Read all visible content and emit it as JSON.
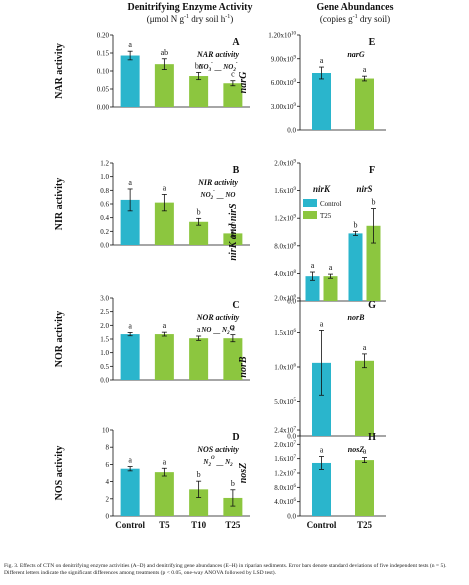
{
  "headers": {
    "left_title": "Denitrifying Enzyme Activity",
    "left_unit_pre": "(μmol N g",
    "left_unit_sup1": "-1",
    "left_unit_mid": " dry soil h",
    "left_unit_sup2": "-1",
    "left_unit_post": ")",
    "right_title": "Gene Abundances",
    "right_unit_pre": "(copies g",
    "right_unit_sup": "-1",
    "right_unit_post": " dry soil)"
  },
  "caption": "Fig. 3. Effects of CTN on denitrifying enzyme activities (A–D) and denitrifying gene abundances (E–H) in riparian sediments. Error bars denote standard deviations of five independent tests (n = 5). Different letters indicate the significant differences among treatments (p < 0.05, one-way ANOVA followed by LSD test).",
  "colors": {
    "control": "#2ab5cc",
    "treatment": "#8cc63f"
  },
  "chart_data": [
    {
      "type": "bar",
      "panel": "A",
      "ylabel": "NAR activity",
      "annotation": "NAR activity",
      "reaction": [
        "NO",
        "3",
        "-",
        "—",
        "NO",
        "2",
        "-"
      ],
      "categories": [
        "Control",
        "T5",
        "T10",
        "T25"
      ],
      "values": [
        0.143,
        0.119,
        0.086,
        0.066
      ],
      "errors": [
        0.012,
        0.015,
        0.01,
        0.007
      ],
      "letters": [
        "a",
        "ab",
        "bc",
        "c"
      ],
      "ylim": [
        0,
        0.2
      ],
      "yticks": [
        "0.00",
        "0.05",
        "0.10",
        "0.15",
        "0.20"
      ],
      "show_xlabels": false
    },
    {
      "type": "bar",
      "panel": "B",
      "ylabel": "NIR activity",
      "annotation": "NIR activity",
      "reaction": [
        "NO",
        "2",
        "-",
        "—",
        "NO",
        "",
        ""
      ],
      "categories": [
        "Control",
        "T5",
        "T10",
        "T25"
      ],
      "values": [
        0.66,
        0.62,
        0.34,
        0.17
      ],
      "errors": [
        0.16,
        0.12,
        0.05,
        0.05
      ],
      "letters": [
        "a",
        "a",
        "b",
        "c"
      ],
      "ylim": [
        0,
        1.2
      ],
      "yticks": [
        "0.0",
        "0.2",
        "0.4",
        "0.6",
        "0.8",
        "1.0",
        "1.2"
      ],
      "show_xlabels": false
    },
    {
      "type": "bar",
      "panel": "C",
      "ylabel": "NOR activity",
      "annotation": "NOR activity",
      "reaction": [
        "NO",
        "",
        "",
        "—",
        "N",
        "2",
        "O"
      ],
      "categories": [
        "Control",
        "T5",
        "T10",
        "T25"
      ],
      "values": [
        1.68,
        1.68,
        1.53,
        1.53
      ],
      "errors": [
        0.06,
        0.07,
        0.08,
        0.13
      ],
      "letters": [
        "a",
        "a",
        "a",
        "a"
      ],
      "ylim": [
        0,
        3.0
      ],
      "yticks": [
        "0.0",
        "0.5",
        "1.0",
        "1.5",
        "2.0",
        "2.5",
        "3.0"
      ],
      "show_xlabels": false
    },
    {
      "type": "bar",
      "panel": "D",
      "ylabel": "NOS activity",
      "annotation": "NOS activity",
      "reaction": [
        "N",
        "2",
        "O",
        "—",
        "N",
        "2",
        ""
      ],
      "categories": [
        "Control",
        "T5",
        "T10",
        "T25"
      ],
      "values": [
        5.5,
        5.1,
        3.1,
        2.1
      ],
      "errors": [
        0.25,
        0.45,
        0.95,
        0.95
      ],
      "letters": [
        "a",
        "a",
        "b",
        "b"
      ],
      "ylim": [
        0,
        10
      ],
      "yticks": [
        "0",
        "2",
        "4",
        "6",
        "8",
        "10"
      ],
      "show_xlabels": true
    },
    {
      "type": "bar",
      "panel": "E",
      "ylabel": "narG",
      "annotation": "narG",
      "categories": [
        "Control",
        "T25"
      ],
      "values": [
        7200000000.0,
        6500000000.0
      ],
      "errors": [
        750000000.0,
        300000000.0
      ],
      "letters": [
        "a",
        "a"
      ],
      "ylim": [
        0,
        12000000000.0
      ],
      "yticks": [
        "0.0",
        "3.00x10^9",
        "6.00x10^9",
        "9.00x10^9",
        "1.20x10^10"
      ],
      "show_xlabels": false
    },
    {
      "type": "bar",
      "panel": "F",
      "ylabel": "nirK and nirS",
      "groups": [
        "nirK",
        "nirS"
      ],
      "categories": [
        "nirK",
        "nirS"
      ],
      "series": [
        {
          "name": "Control",
          "values": [
            360000000.0,
            980000000.0
          ],
          "errors": [
            60000000.0,
            30000000.0
          ]
        },
        {
          "name": "T25",
          "values": [
            360000000.0,
            1090000000.0
          ],
          "errors": [
            30000000.0,
            250000000.0
          ]
        }
      ],
      "letters": [
        [
          "a",
          "a"
        ],
        [
          "b",
          "b"
        ]
      ],
      "legend": [
        "Control",
        "T25"
      ],
      "ylim": [
        0,
        2000000000.0
      ],
      "yticks": [
        "0.0",
        "4.0x10^8",
        "8.0x10^8",
        "1.2x10^9",
        "1.6x10^9",
        "2.0x10^9"
      ],
      "show_xlabels": false
    },
    {
      "type": "bar",
      "panel": "G",
      "ylabel": "norB",
      "annotation": "norB",
      "categories": [
        "Control",
        "T25"
      ],
      "values": [
        1060000.0,
        1090000.0
      ],
      "errors": [
        470000.0,
        100000.0
      ],
      "letters": [
        "a",
        "a"
      ],
      "ylim": [
        0,
        2000000.0
      ],
      "yticks": [
        "0.0",
        "5.0x10^5",
        "1.0x10^6",
        "1.5x10^6",
        "2.0x10^6"
      ],
      "show_xlabels": false
    },
    {
      "type": "bar",
      "panel": "H",
      "ylabel": "nosZ",
      "annotation": "nosZ",
      "categories": [
        "Control",
        "T25"
      ],
      "values": [
        14800000.0,
        15600000.0
      ],
      "errors": [
        1800000.0,
        700000.0
      ],
      "letters": [
        "a",
        "a"
      ],
      "ylim": [
        0,
        24000000.0
      ],
      "yticks": [
        "0.0",
        "4.0x10^6",
        "8.0x10^6",
        "1.2x10^7",
        "1.6x10^7",
        "2.0x10^7",
        "2.4x10^7"
      ],
      "show_xlabels": true
    }
  ]
}
